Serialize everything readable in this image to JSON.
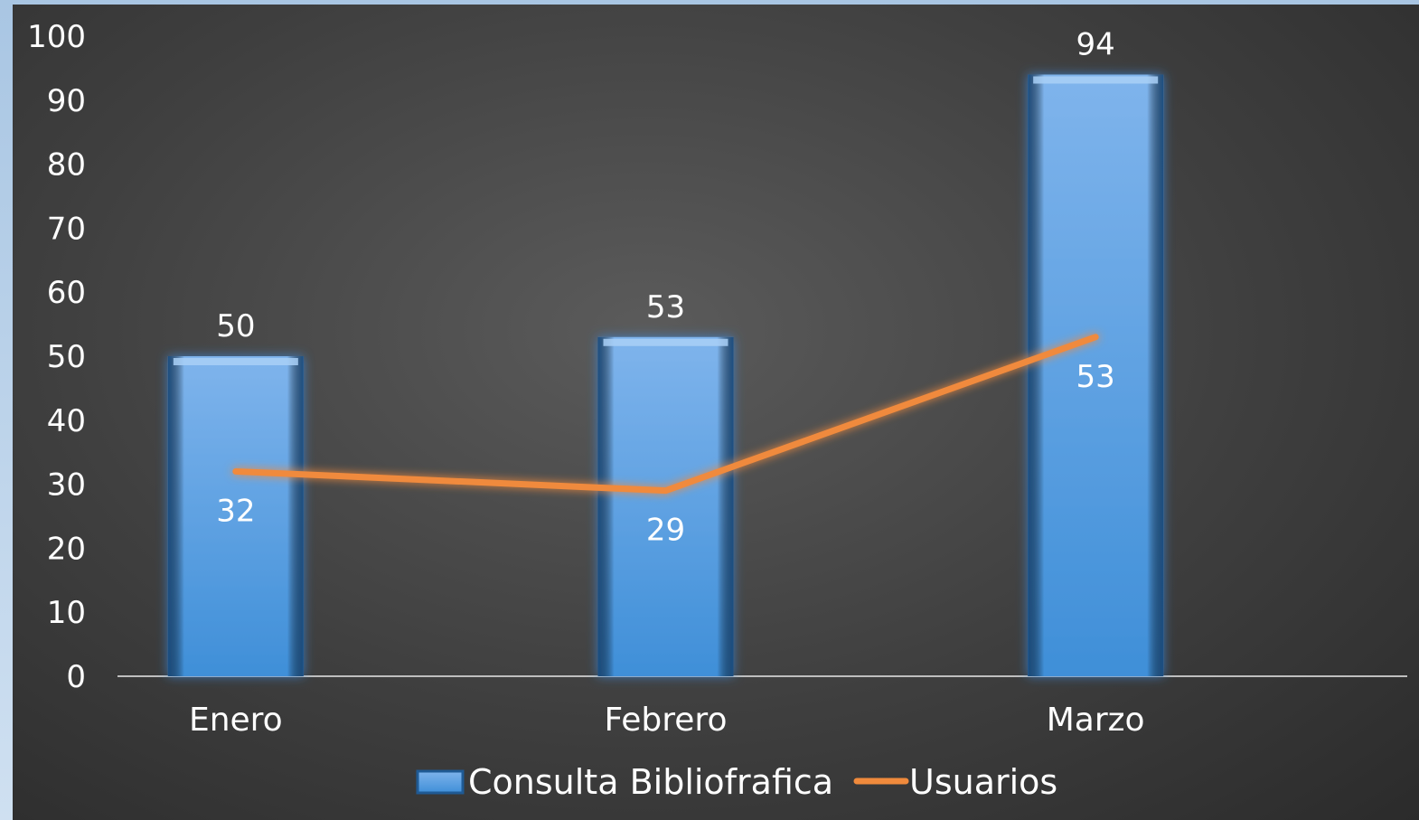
{
  "colors": {
    "bar_top": "#7fb4ec",
    "bar_bottom": "#3f8fd8",
    "bar_edge": "#1f5a94",
    "line": "#f08a3c",
    "axis": "#bfbfbf",
    "text": "#ffffff"
  },
  "chart_data": {
    "type": "bar",
    "categories": [
      "Enero",
      "Febrero",
      "Marzo"
    ],
    "series": [
      {
        "name": "Consulta Bibliofrafica",
        "type": "bar",
        "values": [
          50,
          53,
          94
        ]
      },
      {
        "name": "Usuarios",
        "type": "line",
        "values": [
          32,
          29,
          53
        ]
      }
    ],
    "ylim": [
      0,
      100
    ],
    "yticks": [
      0,
      10,
      20,
      30,
      40,
      50,
      60,
      70,
      80,
      90,
      100
    ],
    "grid": false,
    "legend": "bottom"
  }
}
